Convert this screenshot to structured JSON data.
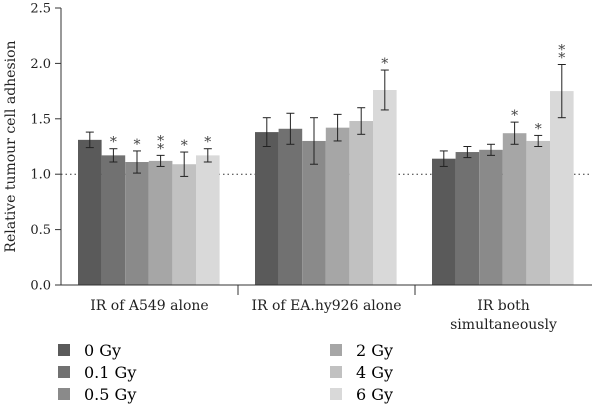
{
  "chart_data": {
    "type": "bar",
    "ylabel": "Relative tumour cell adhesion",
    "xlabel": "",
    "ylim": [
      0,
      2.5
    ],
    "yticks": [
      "0.0",
      "0.5",
      "1.0",
      "1.5",
      "2.0",
      "2.5"
    ],
    "reference_line": 1.0,
    "categories": [
      {
        "lines": [
          "IR of A549 alone"
        ]
      },
      {
        "lines": [
          "IR of EA.hy926 alone"
        ]
      },
      {
        "lines": [
          "IR both",
          "simultaneously"
        ]
      }
    ],
    "series": [
      {
        "name": "0 Gy",
        "color": "#5a5a5a",
        "values": [
          1.31,
          1.38,
          1.14
        ],
        "errors": [
          0.07,
          0.13,
          0.07
        ],
        "stars": [
          "",
          "",
          ""
        ]
      },
      {
        "name": "0.1 Gy",
        "color": "#717171",
        "values": [
          1.17,
          1.41,
          1.2
        ],
        "errors": [
          0.06,
          0.14,
          0.05
        ],
        "stars": [
          "*",
          "",
          ""
        ]
      },
      {
        "name": "0.5 Gy",
        "color": "#8a8a8a",
        "values": [
          1.11,
          1.3,
          1.22
        ],
        "errors": [
          0.1,
          0.21,
          0.05
        ],
        "stars": [
          "*",
          "",
          ""
        ]
      },
      {
        "name": "2 Gy",
        "color": "#a6a6a6",
        "values": [
          1.12,
          1.42,
          1.37
        ],
        "errors": [
          0.05,
          0.12,
          0.1
        ],
        "stars": [
          "**",
          "",
          "*"
        ]
      },
      {
        "name": "4 Gy",
        "color": "#c1c1c1",
        "values": [
          1.09,
          1.48,
          1.3
        ],
        "errors": [
          0.11,
          0.12,
          0.05
        ],
        "stars": [
          "*",
          "",
          "*"
        ]
      },
      {
        "name": "6 Gy",
        "color": "#d9d9d9",
        "values": [
          1.17,
          1.76,
          1.75
        ],
        "errors": [
          0.06,
          0.18,
          0.24
        ],
        "stars": [
          "*",
          "*",
          "**"
        ]
      }
    ],
    "legend": {
      "placement": "bottom",
      "columns": 2
    }
  }
}
